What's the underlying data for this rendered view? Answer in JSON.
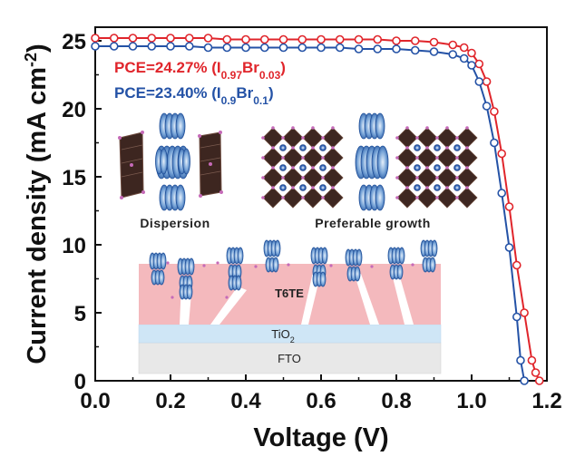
{
  "chart_data": {
    "type": "line",
    "xlabel": "Voltage (V)",
    "ylabel": "Current density (mA cm",
    "ylabel_sup": "-2",
    "ylabel_close": ")",
    "xlim": [
      0.0,
      1.2
    ],
    "ylim": [
      0,
      26
    ],
    "xticks": [
      "0.0",
      "0.2",
      "0.4",
      "0.6",
      "0.8",
      "1.0",
      "1.2"
    ],
    "yticks": [
      "0",
      "5",
      "10",
      "15",
      "20",
      "25"
    ],
    "legend_position": "top-left",
    "series": [
      {
        "name": "PCE=24.27% (I0.97Br0.03)",
        "color": "#e0252b",
        "x": [
          0.0,
          0.05,
          0.1,
          0.15,
          0.2,
          0.25,
          0.3,
          0.35,
          0.4,
          0.45,
          0.5,
          0.55,
          0.6,
          0.65,
          0.7,
          0.75,
          0.8,
          0.85,
          0.9,
          0.95,
          0.98,
          1.0,
          1.02,
          1.04,
          1.06,
          1.08,
          1.1,
          1.12,
          1.14,
          1.16,
          1.17,
          1.18
        ],
        "y": [
          25.2,
          25.2,
          25.2,
          25.2,
          25.2,
          25.2,
          25.2,
          25.1,
          25.1,
          25.1,
          25.1,
          25.1,
          25.1,
          25.1,
          25.1,
          25.1,
          25.0,
          25.0,
          24.9,
          24.7,
          24.5,
          24.1,
          23.3,
          22.0,
          19.8,
          16.7,
          12.8,
          8.5,
          5.0,
          1.5,
          0.6,
          0
        ]
      },
      {
        "name": "PCE=23.40% (I0.9Br0.1)",
        "color": "#2452a6",
        "x": [
          0.0,
          0.05,
          0.1,
          0.15,
          0.2,
          0.25,
          0.3,
          0.35,
          0.4,
          0.45,
          0.5,
          0.55,
          0.6,
          0.65,
          0.7,
          0.75,
          0.8,
          0.85,
          0.9,
          0.95,
          0.98,
          1.0,
          1.02,
          1.04,
          1.06,
          1.08,
          1.1,
          1.12,
          1.13,
          1.14
        ],
        "y": [
          24.6,
          24.6,
          24.6,
          24.6,
          24.6,
          24.6,
          24.5,
          24.5,
          24.5,
          24.5,
          24.5,
          24.5,
          24.5,
          24.5,
          24.4,
          24.4,
          24.4,
          24.3,
          24.2,
          24.0,
          23.7,
          23.2,
          22.0,
          20.2,
          17.5,
          13.8,
          9.8,
          4.7,
          1.5,
          0
        ]
      }
    ],
    "legend_text": [
      {
        "base": "PCE=24.27% (I",
        "sub1": "0.97",
        "mid": "Br",
        "sub2": "0.03",
        "end": ")"
      },
      {
        "base": "PCE=23.40% (I",
        "sub1": "0.9",
        "mid": "Br",
        "sub2": "0.1",
        "end": ")"
      }
    ],
    "annotations": {
      "dispersion": "Dispersion",
      "growth": "Preferable growth",
      "t6te": "T6TE",
      "tio2": "TiO",
      "tio2_sub": "2",
      "fto": "FTO"
    }
  }
}
